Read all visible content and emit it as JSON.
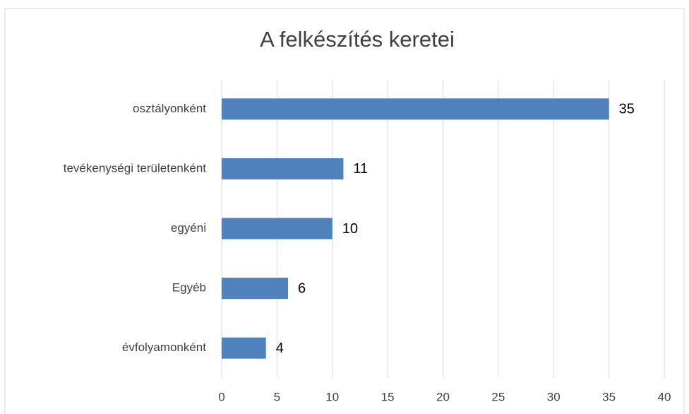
{
  "chart_data": {
    "type": "bar",
    "horizontal": true,
    "title": "A felkészítés keretei",
    "categories": [
      "osztályonként",
      "tevékenységi területenként",
      "egyéni",
      "Egyéb",
      "évfolyamonként"
    ],
    "values": [
      35,
      11,
      10,
      6,
      4
    ],
    "color": "#4f81bd",
    "xlim": [
      0,
      40
    ],
    "xticks": [
      0,
      5,
      10,
      15,
      20,
      25,
      30,
      35,
      40
    ],
    "grid": true
  }
}
